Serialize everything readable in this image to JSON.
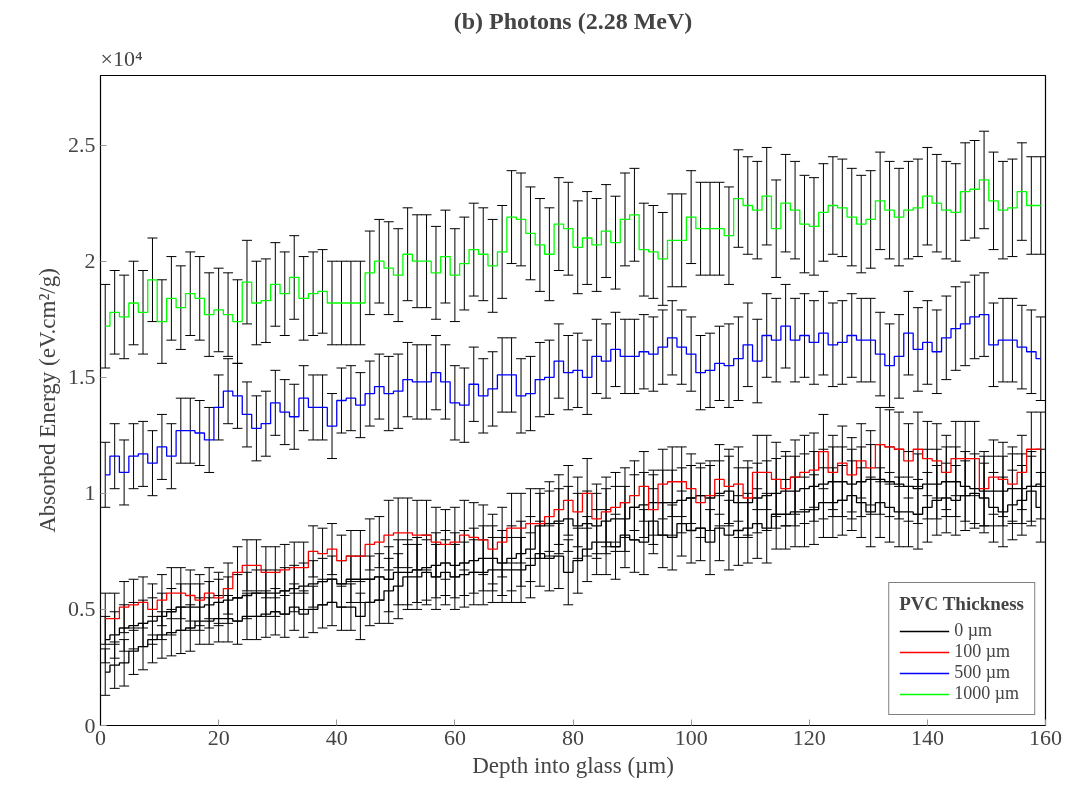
{
  "chart_data": {
    "type": "step",
    "title": "(b) Photons (2.28 MeV)",
    "xlabel": "Depth into glass (µm)",
    "ylabel": "Absorbed Energy (eV.cm²/g)",
    "legend_title": "PVC Thickness",
    "annotations": [
      "×10⁴"
    ],
    "x": [
      0.8,
      2.4,
      4,
      5.6,
      7.2,
      8.8,
      10.4,
      12,
      13.6,
      15.2,
      16.8,
      18.4,
      20,
      21.6,
      23.2,
      24.8,
      26.4,
      28,
      29.6,
      31.2,
      32.8,
      34.4,
      36,
      37.6,
      39.2,
      40.8,
      42.4,
      44,
      45.6,
      47.2,
      48.8,
      50.4,
      52,
      53.6,
      55.2,
      56.8,
      58.4,
      60,
      61.6,
      63.2,
      64.8,
      66.4,
      68,
      69.6,
      71.2,
      72.8,
      74.4,
      76,
      77.6,
      79.2,
      80.8,
      82.4,
      84,
      85.6,
      87.2,
      88.8,
      90.4,
      92,
      93.6,
      95.2,
      96.8,
      98.4,
      100,
      101.6,
      103.2,
      104.8,
      106.4,
      108,
      109.6,
      111.2,
      112.8,
      114.4,
      116,
      117.6,
      119.2,
      120.8,
      122.4,
      124,
      125.6,
      127.2,
      128.8,
      130.4,
      132,
      133.6,
      135.2,
      136.8,
      138.4,
      140,
      141.6,
      143.2,
      144.8,
      146.4,
      148,
      149.6,
      151.2,
      152.8,
      154.4,
      156,
      157.6,
      159.2
    ],
    "series": [
      {
        "name": "0 µm",
        "color": "#000000",
        "values": [
          0.23,
          0.26,
          0.27,
          0.32,
          0.34,
          0.37,
          0.39,
          0.4,
          0.41,
          0.42,
          0.45,
          0.45,
          0.46,
          0.46,
          0.45,
          0.47,
          0.47,
          0.48,
          0.49,
          0.48,
          0.51,
          0.48,
          0.5,
          0.52,
          0.53,
          0.51,
          0.51,
          0.47,
          0.53,
          0.54,
          0.58,
          0.6,
          0.64,
          0.64,
          0.66,
          0.64,
          0.66,
          0.64,
          0.65,
          0.66,
          0.66,
          0.67,
          0.67,
          0.67,
          0.67,
          0.69,
          0.74,
          0.72,
          0.73,
          0.66,
          0.71,
          0.76,
          0.79,
          0.79,
          0.77,
          0.82,
          0.8,
          0.79,
          0.88,
          0.82,
          0.81,
          0.87,
          0.84,
          0.85,
          0.79,
          0.85,
          0.82,
          0.84,
          0.85,
          0.87,
          0.85,
          0.91,
          0.91,
          0.92,
          0.92,
          0.93,
          0.96,
          0.96,
          0.97,
          0.99,
          0.96,
          0.92,
          0.96,
          0.94,
          0.92,
          0.92,
          0.91,
          0.94,
          0.97,
          0.98,
          0.97,
          0.99,
          1.0,
          0.98,
          0.94,
          0.92,
          0.95,
          0.97,
          1.01,
          0.94
        ],
        "errors": [
          0.1,
          0.1,
          0.1,
          0.1,
          0.1,
          0.1,
          0.1,
          0.1,
          0.1,
          0.1,
          0.1,
          0.1,
          0.1,
          0.1,
          0.1,
          0.1,
          0.1,
          0.1,
          0.1,
          0.1,
          0.1,
          0.1,
          0.1,
          0.1,
          0.1,
          0.1,
          0.1,
          0.1,
          0.1,
          0.1,
          0.14,
          0.14,
          0.14,
          0.14,
          0.14,
          0.14,
          0.14,
          0.14,
          0.14,
          0.14,
          0.14,
          0.14,
          0.14,
          0.14,
          0.14,
          0.14,
          0.14,
          0.14,
          0.14,
          0.14,
          0.14,
          0.14,
          0.14,
          0.14,
          0.14,
          0.14,
          0.14,
          0.14,
          0.14,
          0.14,
          0.14,
          0.14,
          0.14,
          0.14,
          0.14,
          0.14,
          0.15,
          0.15,
          0.15,
          0.15,
          0.15,
          0.15,
          0.15,
          0.15,
          0.15,
          0.15,
          0.15,
          0.15,
          0.15,
          0.15,
          0.15,
          0.15,
          0.15,
          0.15,
          0.15,
          0.15,
          0.15,
          0.15,
          0.15,
          0.15,
          0.15,
          0.15,
          0.15,
          0.15,
          0.15,
          0.15,
          0.15,
          0.15,
          0.15,
          0.15
        ]
      },
      {
        "color": "#000000",
        "values": [
          0.37,
          0.39,
          0.42,
          0.43,
          0.44,
          0.45,
          0.47,
          0.49,
          0.51,
          0.51,
          0.51,
          0.52,
          0.53,
          0.54,
          0.55,
          0.56,
          0.57,
          0.57,
          0.57,
          0.58,
          0.59,
          0.6,
          0.61,
          0.62,
          0.63,
          0.61,
          0.63,
          0.63,
          0.63,
          0.64,
          0.63,
          0.66,
          0.66,
          0.67,
          0.68,
          0.69,
          0.7,
          0.69,
          0.7,
          0.71,
          0.72,
          0.72,
          0.7,
          0.72,
          0.74,
          0.76,
          0.86,
          0.87,
          0.88,
          0.89,
          0.86,
          0.87,
          0.86,
          0.88,
          0.89,
          0.89,
          0.94,
          0.95,
          0.96,
          0.96,
          0.96,
          0.97,
          0.98,
          0.99,
          0.98,
          1.0,
          1.01,
          0.96,
          0.96,
          0.98,
          0.99,
          1.0,
          1.01,
          1.01,
          1.02,
          1.03,
          1.04,
          1.05,
          1.05,
          1.04,
          1.05,
          1.06,
          1.06,
          1.05,
          1.04,
          1.03,
          1.02,
          1.04,
          1.04,
          1.05,
          1.05,
          1.03,
          1.02,
          1.01,
          1.01,
          1.01,
          1.02,
          1.02,
          1.03,
          1.04
        ],
        "errors": [
          0.1,
          0.1,
          0.1,
          0.1,
          0.1,
          0.1,
          0.1,
          0.1,
          0.1,
          0.1,
          0.1,
          0.1,
          0.1,
          0.1,
          0.1,
          0.1,
          0.1,
          0.1,
          0.1,
          0.1,
          0.1,
          0.1,
          0.1,
          0.1,
          0.1,
          0.1,
          0.1,
          0.1,
          0.1,
          0.1,
          0.14,
          0.14,
          0.14,
          0.14,
          0.14,
          0.14,
          0.14,
          0.14,
          0.14,
          0.14,
          0.14,
          0.14,
          0.14,
          0.14,
          0.14,
          0.14,
          0.14,
          0.14,
          0.14,
          0.14,
          0.14,
          0.14,
          0.14,
          0.14,
          0.14,
          0.14,
          0.14,
          0.14,
          0.14,
          0.14,
          0.14,
          0.14,
          0.14,
          0.14,
          0.14,
          0.14,
          0.15,
          0.15,
          0.15,
          0.15,
          0.15,
          0.15,
          0.15,
          0.15,
          0.15,
          0.15,
          0.15,
          0.15,
          0.15,
          0.15,
          0.15,
          0.15,
          0.15,
          0.15,
          0.15,
          0.15,
          0.15,
          0.15,
          0.15,
          0.15,
          0.15,
          0.15,
          0.15,
          0.15,
          0.15,
          0.15,
          0.15,
          0.15,
          0.15,
          0.15
        ]
      },
      {
        "name": "100 µm",
        "color": "#ff0000",
        "values": [
          0.46,
          0.46,
          0.51,
          0.52,
          0.53,
          0.5,
          0.54,
          0.57,
          0.57,
          0.56,
          0.54,
          0.57,
          0.55,
          0.59,
          0.66,
          0.69,
          0.69,
          0.66,
          0.66,
          0.67,
          0.68,
          0.68,
          0.75,
          0.74,
          0.76,
          0.71,
          0.73,
          0.73,
          0.78,
          0.79,
          0.82,
          0.83,
          0.83,
          0.82,
          0.82,
          0.79,
          0.78,
          0.79,
          0.82,
          0.81,
          0.8,
          0.76,
          0.79,
          0.85,
          0.85,
          0.87,
          0.87,
          0.9,
          0.93,
          0.97,
          0.92,
          1.0,
          0.89,
          0.92,
          0.94,
          0.96,
          0.99,
          1.03,
          0.93,
          1.04,
          1.05,
          1.05,
          1.02,
          0.96,
          0.99,
          1.06,
          1.03,
          1.04,
          0.98,
          1.09,
          1.09,
          1.06,
          1.02,
          1.07,
          1.09,
          1.1,
          1.18,
          1.09,
          1.13,
          1.08,
          1.14,
          1.11,
          1.21,
          1.2,
          1.19,
          1.14,
          1.19,
          1.15,
          1.14,
          1.09,
          1.15,
          1.15,
          1.15,
          1.02,
          1.07,
          1.06,
          1.04,
          1.09,
          1.19,
          1.19
        ],
        "errors": [
          0.11,
          0.11,
          0.11,
          0.11,
          0.11,
          0.11,
          0.11,
          0.11,
          0.11,
          0.11,
          0.11,
          0.11,
          0.11,
          0.11,
          0.11,
          0.11,
          0.11,
          0.11,
          0.11,
          0.11,
          0.11,
          0.11,
          0.11,
          0.11,
          0.11,
          0.11,
          0.11,
          0.11,
          0.11,
          0.11,
          0.15,
          0.15,
          0.15,
          0.15,
          0.15,
          0.15,
          0.15,
          0.15,
          0.15,
          0.15,
          0.15,
          0.15,
          0.15,
          0.15,
          0.15,
          0.15,
          0.15,
          0.15,
          0.15,
          0.15,
          0.15,
          0.15,
          0.15,
          0.15,
          0.15,
          0.15,
          0.15,
          0.15,
          0.15,
          0.15,
          0.15,
          0.15,
          0.15,
          0.15,
          0.15,
          0.15,
          0.16,
          0.16,
          0.16,
          0.16,
          0.16,
          0.16,
          0.16,
          0.16,
          0.16,
          0.16,
          0.16,
          0.16,
          0.16,
          0.16,
          0.16,
          0.16,
          0.16,
          0.16,
          0.16,
          0.16,
          0.16,
          0.16,
          0.16,
          0.16,
          0.16,
          0.16,
          0.16,
          0.16,
          0.16,
          0.16,
          0.16,
          0.16,
          0.16,
          0.16
        ]
      },
      {
        "name": "500 µm",
        "color": "#0000ff",
        "values": [
          1.08,
          1.16,
          1.09,
          1.16,
          1.17,
          1.13,
          1.2,
          1.16,
          1.27,
          1.27,
          1.26,
          1.23,
          1.37,
          1.44,
          1.42,
          1.34,
          1.28,
          1.3,
          1.39,
          1.35,
          1.33,
          1.41,
          1.37,
          1.37,
          1.29,
          1.4,
          1.41,
          1.38,
          1.43,
          1.46,
          1.43,
          1.44,
          1.49,
          1.48,
          1.48,
          1.52,
          1.48,
          1.39,
          1.38,
          1.47,
          1.42,
          1.45,
          1.51,
          1.51,
          1.42,
          1.43,
          1.49,
          1.5,
          1.57,
          1.52,
          1.53,
          1.5,
          1.59,
          1.57,
          1.62,
          1.59,
          1.59,
          1.61,
          1.6,
          1.63,
          1.67,
          1.63,
          1.6,
          1.52,
          1.53,
          1.56,
          1.55,
          1.58,
          1.64,
          1.57,
          1.68,
          1.66,
          1.72,
          1.66,
          1.68,
          1.65,
          1.69,
          1.64,
          1.65,
          1.68,
          1.66,
          1.66,
          1.6,
          1.55,
          1.59,
          1.69,
          1.62,
          1.65,
          1.61,
          1.67,
          1.71,
          1.73,
          1.76,
          1.77,
          1.64,
          1.66,
          1.66,
          1.63,
          1.61,
          1.58
        ],
        "errors": [
          0.14,
          0.14,
          0.14,
          0.14,
          0.14,
          0.14,
          0.14,
          0.14,
          0.14,
          0.14,
          0.14,
          0.14,
          0.14,
          0.14,
          0.14,
          0.14,
          0.14,
          0.14,
          0.14,
          0.14,
          0.14,
          0.14,
          0.14,
          0.14,
          0.14,
          0.14,
          0.14,
          0.14,
          0.14,
          0.14,
          0.16,
          0.16,
          0.16,
          0.16,
          0.16,
          0.16,
          0.16,
          0.16,
          0.16,
          0.16,
          0.16,
          0.16,
          0.16,
          0.16,
          0.16,
          0.16,
          0.16,
          0.16,
          0.16,
          0.16,
          0.16,
          0.16,
          0.16,
          0.16,
          0.16,
          0.16,
          0.16,
          0.16,
          0.16,
          0.16,
          0.16,
          0.16,
          0.16,
          0.16,
          0.16,
          0.16,
          0.18,
          0.18,
          0.18,
          0.18,
          0.18,
          0.18,
          0.18,
          0.18,
          0.18,
          0.18,
          0.18,
          0.18,
          0.18,
          0.18,
          0.18,
          0.18,
          0.18,
          0.18,
          0.18,
          0.18,
          0.18,
          0.18,
          0.18,
          0.18,
          0.18,
          0.18,
          0.18,
          0.18,
          0.18,
          0.18,
          0.18,
          0.18,
          0.18,
          0.18
        ]
      },
      {
        "name": "1000 µm",
        "color": "#00ff00",
        "values": [
          1.72,
          1.78,
          1.76,
          1.82,
          1.78,
          1.92,
          1.74,
          1.84,
          1.8,
          1.86,
          1.84,
          1.77,
          1.79,
          1.77,
          1.74,
          1.91,
          1.82,
          1.83,
          1.9,
          1.86,
          1.93,
          1.84,
          1.86,
          1.87,
          1.82,
          1.82,
          1.82,
          1.82,
          1.95,
          2.0,
          1.97,
          1.94,
          2.03,
          2.0,
          2.0,
          1.95,
          2.02,
          1.94,
          1.99,
          2.05,
          2.03,
          1.98,
          2.04,
          2.19,
          2.18,
          2.12,
          2.07,
          2.03,
          2.16,
          2.14,
          2.06,
          2.1,
          2.07,
          2.13,
          2.08,
          2.18,
          2.2,
          2.05,
          2.04,
          2.01,
          2.09,
          2.09,
          2.19,
          2.14,
          2.14,
          2.14,
          2.11,
          2.27,
          2.24,
          2.22,
          2.28,
          2.14,
          2.25,
          2.22,
          2.16,
          2.15,
          2.21,
          2.24,
          2.23,
          2.19,
          2.16,
          2.18,
          2.26,
          2.22,
          2.19,
          2.22,
          2.23,
          2.28,
          2.25,
          2.22,
          2.21,
          2.3,
          2.31,
          2.35,
          2.26,
          2.22,
          2.23,
          2.3,
          2.24,
          2.24
        ],
        "errors": [
          0.18,
          0.18,
          0.18,
          0.18,
          0.18,
          0.18,
          0.18,
          0.18,
          0.18,
          0.18,
          0.18,
          0.18,
          0.18,
          0.18,
          0.18,
          0.18,
          0.18,
          0.18,
          0.18,
          0.18,
          0.18,
          0.18,
          0.18,
          0.18,
          0.18,
          0.18,
          0.18,
          0.18,
          0.18,
          0.18,
          0.2,
          0.2,
          0.2,
          0.2,
          0.2,
          0.2,
          0.2,
          0.2,
          0.2,
          0.2,
          0.2,
          0.2,
          0.2,
          0.2,
          0.2,
          0.2,
          0.2,
          0.2,
          0.2,
          0.2,
          0.2,
          0.2,
          0.2,
          0.2,
          0.2,
          0.2,
          0.2,
          0.2,
          0.2,
          0.2,
          0.2,
          0.2,
          0.2,
          0.2,
          0.2,
          0.2,
          0.21,
          0.21,
          0.21,
          0.21,
          0.21,
          0.21,
          0.21,
          0.21,
          0.21,
          0.21,
          0.21,
          0.21,
          0.21,
          0.21,
          0.21,
          0.21,
          0.21,
          0.21,
          0.21,
          0.21,
          0.21,
          0.21,
          0.21,
          0.21,
          0.21,
          0.21,
          0.21,
          0.21,
          0.21,
          0.21,
          0.21,
          0.21,
          0.21,
          0.21
        ]
      }
    ],
    "xlim": [
      0,
      160
    ],
    "ylim": [
      0,
      2.8
    ],
    "xticks": [
      0,
      20,
      40,
      60,
      80,
      100,
      120,
      140,
      160
    ],
    "yticks": [
      0,
      0.5,
      1,
      1.5,
      2,
      2.5
    ],
    "grid": false,
    "legend": "bottom right"
  }
}
